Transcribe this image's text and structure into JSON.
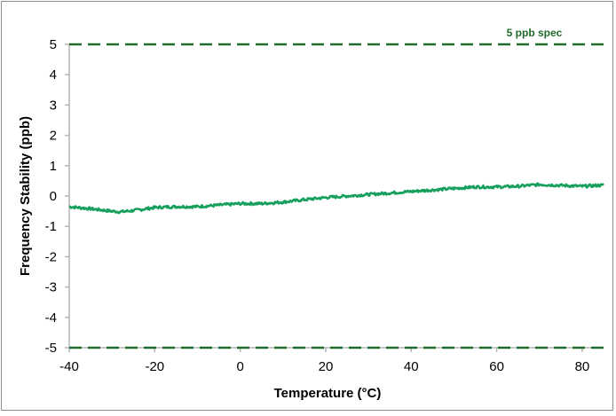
{
  "chart_data": {
    "type": "line",
    "xlabel": "Temperature (°C)",
    "ylabel": "Frequency Stability (ppb)",
    "xlim": [
      -40,
      85
    ],
    "ylim": [
      -5,
      5
    ],
    "x_ticks": [
      -40,
      -20,
      0,
      20,
      40,
      60,
      80
    ],
    "y_ticks": [
      -5,
      -4,
      -3,
      -2,
      -1,
      0,
      1,
      2,
      3,
      4,
      5
    ],
    "grid": false,
    "series": [
      {
        "color": "#17a05d",
        "x": [
          -40,
          -35,
          -30,
          -28,
          -25,
          -20,
          -15,
          -10,
          -5,
          0,
          5,
          10,
          15,
          20,
          25,
          30,
          35,
          40,
          45,
          50,
          55,
          60,
          65,
          70,
          75,
          80,
          85
        ],
        "y": [
          -0.35,
          -0.42,
          -0.5,
          -0.52,
          -0.48,
          -0.38,
          -0.35,
          -0.35,
          -0.3,
          -0.25,
          -0.25,
          -0.2,
          -0.12,
          -0.05,
          0.0,
          0.05,
          0.1,
          0.15,
          0.2,
          0.25,
          0.3,
          0.3,
          0.32,
          0.38,
          0.35,
          0.32,
          0.36
        ]
      }
    ],
    "reference_lines": [
      {
        "y": 5,
        "color": "#1e6b2b",
        "style": "dashed",
        "label": "5 ppb spec"
      },
      {
        "y": -5,
        "color": "#1e6b2b",
        "style": "dashed"
      }
    ]
  }
}
